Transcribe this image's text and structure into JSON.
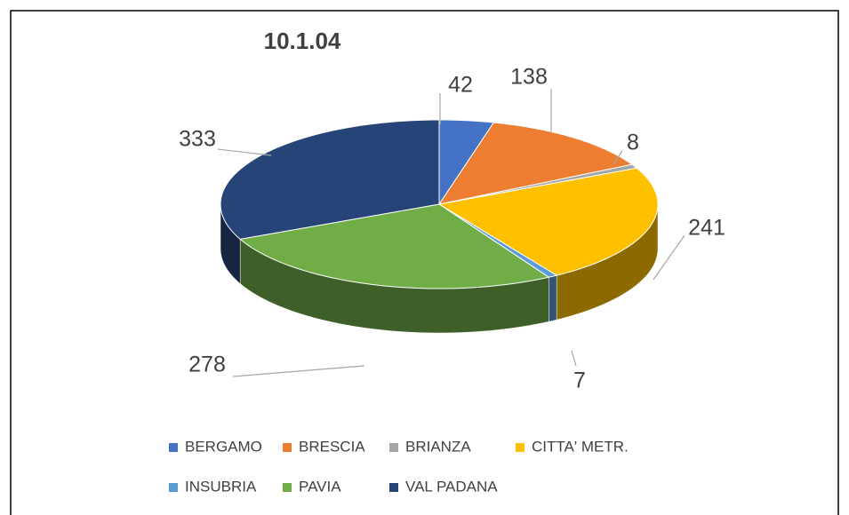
{
  "chart_data": {
    "type": "pie3d",
    "title": "10.1.04",
    "categories": [
      "BERGAMO",
      "BRESCIA",
      "BRIANZA",
      "CITTA' METR.",
      "INSUBRIA",
      "PAVIA",
      "VAL PADANA"
    ],
    "values": [
      42,
      138,
      8,
      241,
      7,
      278,
      333
    ],
    "colors": [
      "#4472c4",
      "#ed7d31",
      "#a5a5a5",
      "#ffc000",
      "#5b9bd5",
      "#70ad47",
      "#264478"
    ],
    "legend": "bottom"
  }
}
